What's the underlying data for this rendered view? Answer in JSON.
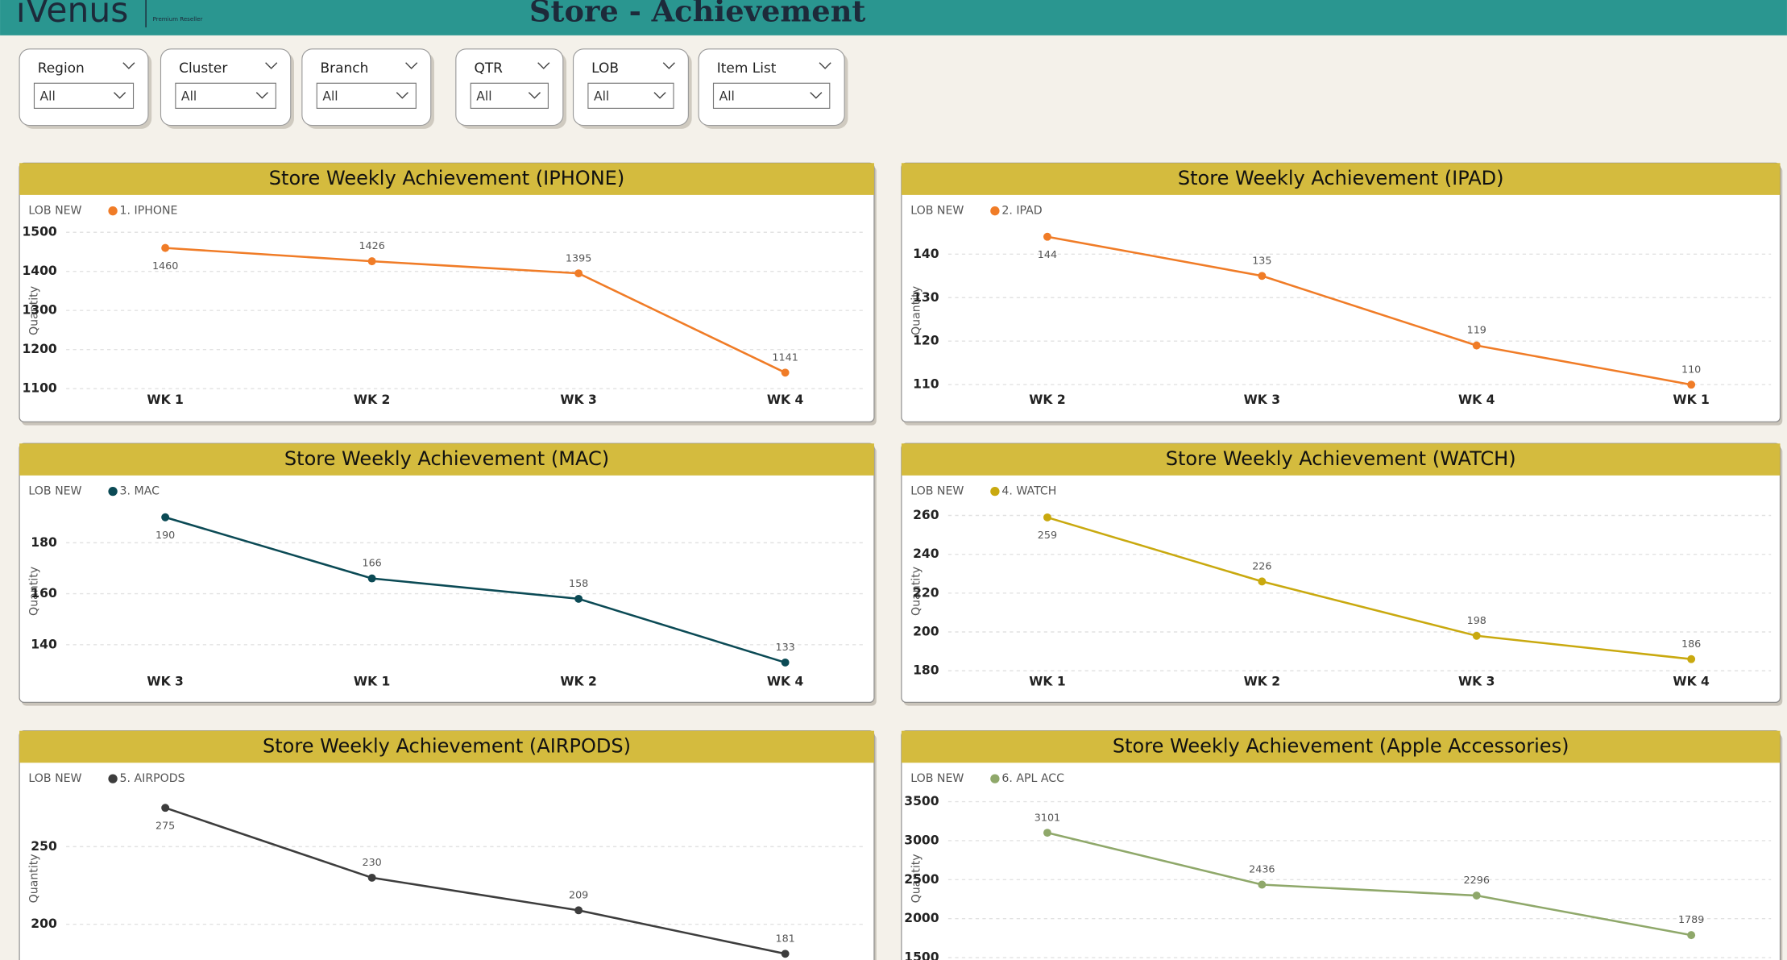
{
  "header": {
    "logo": "iVenus",
    "logo_sub": "Premium Reseller",
    "title": "Store - Achievement"
  },
  "filters": [
    {
      "label": "Region",
      "value": "All"
    },
    {
      "label": "Cluster",
      "value": "All"
    },
    {
      "label": "Branch",
      "value": "All"
    },
    {
      "label": "QTR",
      "value": "All"
    },
    {
      "label": "LOB",
      "value": "All"
    },
    {
      "label": "Item List",
      "value": "All"
    }
  ],
  "chart_data": [
    {
      "type": "line",
      "title": "Store Weekly Achievement (IPHONE)",
      "legend_title": "LOB NEW",
      "ylabel": "Quantity",
      "grid": true,
      "categories": [
        "WK 1",
        "WK 2",
        "WK 3",
        "WK 4"
      ],
      "series": [
        {
          "name": "1. IPHONE",
          "color": "#f07c27",
          "values": [
            1460,
            1426,
            1395,
            1141
          ]
        }
      ],
      "ylim": [
        1088,
        1511
      ],
      "yticks": [
        1100,
        1200,
        1300,
        1400,
        1500
      ]
    },
    {
      "type": "line",
      "title": "Store Weekly Achievement (IPAD)",
      "legend_title": "LOB NEW",
      "ylabel": "Quantity",
      "grid": true,
      "categories": [
        "WK 2",
        "WK 3",
        "WK 4",
        "WK 1"
      ],
      "series": [
        {
          "name": "2. IPAD",
          "color": "#f07c27",
          "values": [
            144,
            135,
            119,
            110
          ]
        }
      ],
      "ylim": [
        108,
        146
      ],
      "yticks": [
        110,
        120,
        130,
        140
      ]
    },
    {
      "type": "line",
      "title": "Store Weekly Achievement (MAC)",
      "legend_title": "LOB NEW",
      "ylabel": "Quantity",
      "grid": true,
      "categories": [
        "WK 3",
        "WK 1",
        "WK 2",
        "WK 4"
      ],
      "series": [
        {
          "name": "3. MAC",
          "color": "#0b4a55",
          "values": [
            190,
            166,
            158,
            133
          ]
        }
      ],
      "ylim": [
        129,
        193
      ],
      "yticks": [
        140,
        160,
        180
      ]
    },
    {
      "type": "line",
      "title": "Store Weekly Achievement (WATCH)",
      "legend_title": "LOB NEW",
      "ylabel": "Quantity",
      "grid": true,
      "categories": [
        "WK 1",
        "WK 2",
        "WK 3",
        "WK 4"
      ],
      "series": [
        {
          "name": "4. WATCH",
          "color": "#c9a90f",
          "values": [
            259,
            226,
            198,
            186
          ]
        }
      ],
      "ylim": [
        179,
        263
      ],
      "yticks": [
        180,
        200,
        220,
        240,
        260
      ]
    },
    {
      "type": "line",
      "title": "Store Weekly Achievement (AIRPODS)",
      "legend_title": "LOB NEW",
      "ylabel": "Quantity",
      "grid": true,
      "categories": [
        null,
        null,
        null,
        null
      ],
      "series": [
        {
          "name": "5. AIRPODS",
          "color": "#3d3d3d",
          "values": [
            275,
            230,
            209,
            181
          ]
        }
      ],
      "ylim": [
        177,
        282
      ],
      "yticks": [
        200,
        250
      ]
    },
    {
      "type": "line",
      "title": "Store Weekly Achievement (Apple Accessories)",
      "legend_title": "LOB NEW",
      "ylabel": "Quantity",
      "grid": true,
      "categories": [
        null,
        null,
        null,
        null
      ],
      "series": [
        {
          "name": "6. APL ACC",
          "color": "#8fa86a",
          "values": [
            3101,
            2436,
            2296,
            1789
          ]
        }
      ],
      "ylim": [
        1470,
        3560
      ],
      "yticks": [
        1500,
        2000,
        2500,
        3000,
        3500
      ]
    }
  ]
}
